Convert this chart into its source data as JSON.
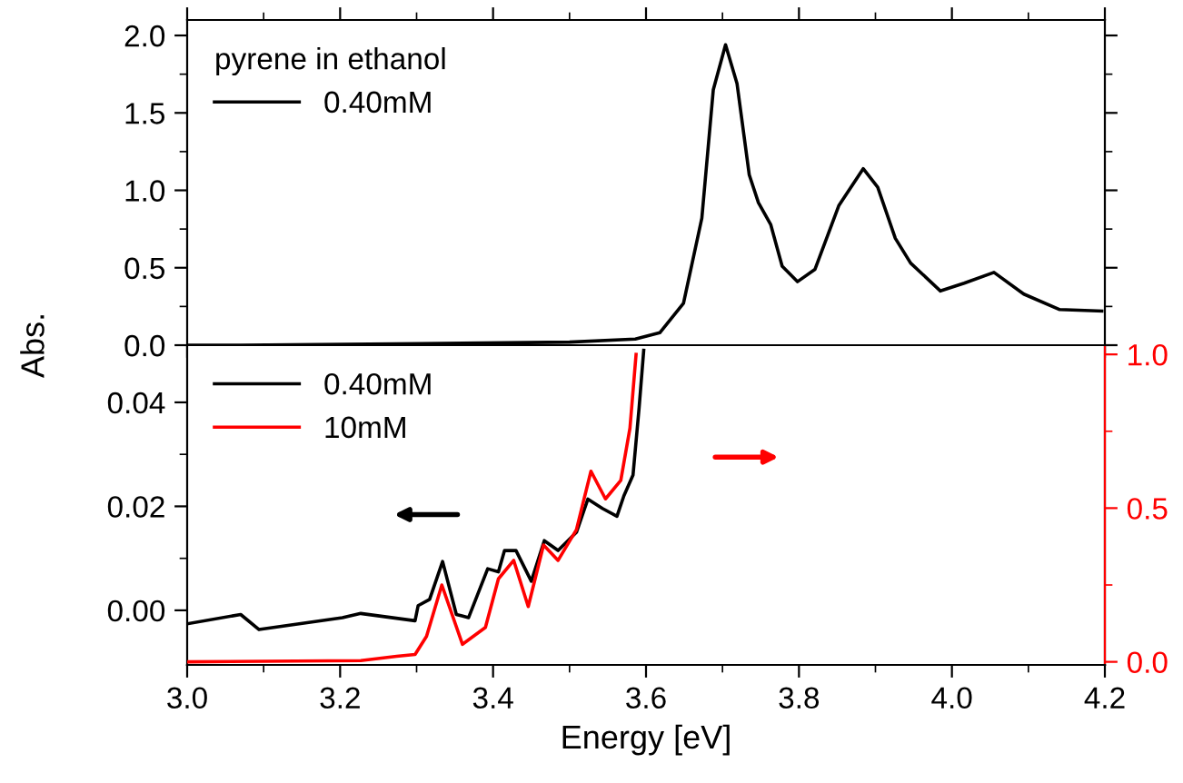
{
  "chart_data": [
    {
      "type": "line",
      "ylabel": "Abs.",
      "legend_title": "pyrene in ethanol",
      "legend": "top left",
      "tick_labels": "y",
      "xlim": [
        3.0,
        4.2
      ],
      "xticks": [
        3.0,
        3.2,
        3.4,
        3.6,
        3.8,
        4.0,
        4.2
      ],
      "ylim": [
        0,
        2.1
      ],
      "yticks": [
        {
          "value": 0,
          "label": "0.0"
        },
        0.5,
        {
          "value": 1,
          "label": "1.0"
        },
        1.5,
        {
          "value": 2,
          "label": "2.0"
        }
      ],
      "series": [
        {
          "name": "0.40mM",
          "color": "#000000",
          "x": [
            3.0,
            3.07,
            3.305,
            3.5,
            3.586,
            3.618,
            3.649,
            3.673,
            3.688,
            3.704,
            3.719,
            3.735,
            3.747,
            3.763,
            3.778,
            3.798,
            3.821,
            3.852,
            3.884,
            3.903,
            3.926,
            3.946,
            3.985,
            4.016,
            4.055,
            4.094,
            4.141,
            4.196
          ],
          "values": [
            0.0,
            0.0,
            0.01,
            0.02,
            0.04,
            0.08,
            0.27,
            0.82,
            1.65,
            1.94,
            1.69,
            1.1,
            0.92,
            0.78,
            0.51,
            0.41,
            0.49,
            0.9,
            1.14,
            1.02,
            0.69,
            0.53,
            0.35,
            0.4,
            0.47,
            0.33,
            0.23,
            0.22
          ]
        }
      ]
    },
    {
      "type": "line",
      "xlabel": "Energy [eV]",
      "legend": "top left",
      "xlim": [
        3.0,
        4.2
      ],
      "xticks": [
        {
          "value": 3.0,
          "label": "3.0"
        },
        3.2,
        3.4,
        3.6,
        3.8,
        {
          "value": 4.0,
          "label": "4.0"
        },
        4.2
      ],
      "ylim": [
        -0.0105,
        0.051
      ],
      "yticks": [
        {
          "value": 0,
          "label": "0.00"
        },
        {
          "value": 0.02,
          "label": "0.02"
        },
        {
          "value": 0.04,
          "label": "0.04"
        }
      ],
      "y2lim": [
        -0.01,
        1.03
      ],
      "y2ticks": [
        {
          "value": 0,
          "label": "0.0"
        },
        0.5,
        {
          "value": 1,
          "label": "1.0"
        }
      ],
      "series": [
        {
          "name": "0.40mM",
          "color": "#000000",
          "x": [
            3.0,
            3.07,
            3.094,
            3.203,
            3.227,
            3.298,
            3.302,
            3.317,
            3.334,
            3.352,
            3.368,
            3.393,
            3.407,
            3.415,
            3.43,
            3.45,
            3.467,
            3.485,
            3.509,
            3.524,
            3.543,
            3.562,
            3.571,
            3.583,
            3.591,
            3.597
          ],
          "values": [
            -0.0026,
            -0.0008,
            -0.0037,
            -0.0014,
            -0.0006,
            -0.002,
            0.0009,
            0.0021,
            0.0094,
            -0.0008,
            -0.0014,
            0.008,
            0.0074,
            0.0115,
            0.0115,
            0.0056,
            0.0134,
            0.0115,
            0.015,
            0.0214,
            0.0196,
            0.0181,
            0.022,
            0.026,
            0.039,
            0.05
          ]
        },
        {
          "name": "10mM",
          "color": "#ff0000",
          "axis": "y2",
          "x": [
            3.0,
            3.227,
            3.274,
            3.298,
            3.313,
            3.333,
            3.36,
            3.39,
            3.407,
            3.427,
            3.446,
            3.466,
            3.485,
            3.509,
            3.528,
            3.547,
            3.567,
            3.579,
            3.587
          ],
          "values": [
            0.0,
            0.004,
            0.018,
            0.024,
            0.083,
            0.25,
            0.057,
            0.112,
            0.27,
            0.33,
            0.18,
            0.38,
            0.33,
            0.43,
            0.62,
            0.53,
            0.59,
            0.76,
            1.0
          ]
        }
      ]
    }
  ]
}
